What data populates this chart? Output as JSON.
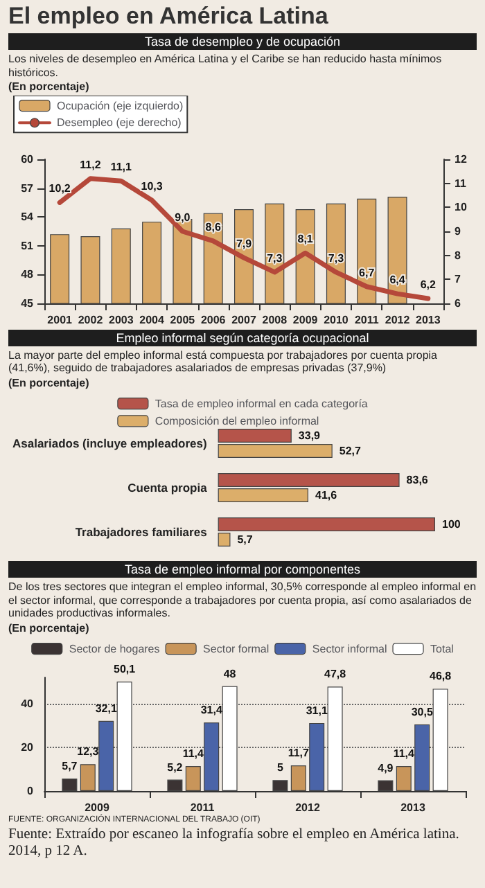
{
  "chart_data": [
    {
      "type": "bar",
      "title": "El empleo en América Latina",
      "subtitle": "Tasa de desempleo y de ocupación",
      "annotations": [
        "Los niveles de desempleo en América Latina y el Caribe se han reducido hasta mínimos históricos.",
        "(En porcentaje)"
      ],
      "categories": [
        "2001",
        "2002",
        "2003",
        "2004",
        "2005",
        "2006",
        "2007",
        "2008",
        "2009",
        "2010",
        "2011",
        "2012",
        "2013"
      ],
      "series": [
        {
          "name": "Ocupación (eje izquierdo)",
          "color": "#d9a866",
          "values": [
            52.2,
            52.0,
            52.8,
            53.5,
            53.8,
            54.4,
            54.8,
            55.4,
            54.8,
            55.4,
            55.9,
            56.1,
            null
          ]
        },
        {
          "name": "Desempleo (eje derecho)",
          "type": "line",
          "axis": "y2",
          "color": "#b5483a",
          "values": [
            10.2,
            11.2,
            11.1,
            10.3,
            9.0,
            8.6,
            7.9,
            7.3,
            8.1,
            7.3,
            6.7,
            6.4,
            6.2
          ],
          "value_labels": [
            "10,2",
            "11,2",
            "11,1",
            "10,3",
            "9,0",
            "8,6",
            "7,9",
            "7,3",
            "8,1",
            "7,3",
            "6,7",
            "6,4",
            "6,2"
          ]
        }
      ],
      "ylim": [
        45,
        60
      ],
      "yticks": [
        45,
        48,
        51,
        54,
        57,
        60
      ],
      "y2lim": [
        6,
        12
      ],
      "y2ticks": [
        6,
        7,
        8,
        9,
        10,
        11,
        12
      ],
      "legend": "top left",
      "marker": "none"
    },
    {
      "type": "bar",
      "orientation": "horizontal",
      "title": "Empleo informal según categoría ocupacional",
      "annotations": [
        "La mayor parte del empleo informal está compuesta por trabajadores por cuenta propia (41,6%), seguido de trabajadores asalariados de empresas privadas (37,9%)",
        "(En porcentaje)"
      ],
      "categories": [
        "Asalariados (incluye empleadores)",
        "Cuenta propia",
        "Trabajadores familiares"
      ],
      "series": [
        {
          "name": "Tasa de empleo informal en cada categoría",
          "color": "#b5544a",
          "values": [
            33.9,
            83.6,
            100
          ],
          "value_labels": [
            "33,9",
            "83,6",
            "100"
          ]
        },
        {
          "name": "Composición del empleo informal",
          "color": "#dcae6a",
          "values": [
            52.7,
            41.6,
            5.7
          ],
          "value_labels": [
            "52,7",
            "41,6",
            "5,7"
          ]
        }
      ],
      "legend": "top"
    },
    {
      "type": "bar",
      "title": "Tasa de empleo informal por componentes",
      "annotations": [
        "De los tres sectores que integran el empleo informal, 30,5% corresponde al empleo informal en el sector informal, que corresponde a trabajadores por cuenta propia, así como asalariados de unidades productivas informales.",
        "(En porcentaje)",
        "FUENTE: ORGANIZACIÓN INTERNACIONAL DEL TRABAJO (OIT)",
        "Fuente: Extraído por escaneo la infografía sobre el empleo en América latina. 2014, p 12 A."
      ],
      "categories": [
        "2009",
        "2011",
        "2012",
        "2013"
      ],
      "series": [
        {
          "name": "Sector de hogares",
          "color": "#3b3333",
          "values": [
            5.7,
            5.2,
            5,
            4.9
          ],
          "value_labels": [
            "5,7",
            "5,2",
            "5",
            "4,9"
          ]
        },
        {
          "name": "Sector formal",
          "color": "#c8955a",
          "values": [
            12.3,
            11.4,
            11.7,
            11.4
          ],
          "value_labels": [
            "12,3",
            "11,4",
            "11,7",
            "11,4"
          ]
        },
        {
          "name": "Sector informal",
          "color": "#4a64a8",
          "values": [
            32.1,
            31.4,
            31.1,
            30.5
          ],
          "value_labels": [
            "32,1",
            "31,4",
            "31,1",
            "30,5"
          ]
        },
        {
          "name": "Total",
          "color": "#ffffff",
          "values": [
            50.1,
            48,
            47.8,
            46.8
          ],
          "value_labels": [
            "50,1",
            "48",
            "47,8",
            "46,8"
          ]
        }
      ],
      "ylim": [
        0,
        52
      ],
      "yticks": [
        0,
        20,
        40
      ],
      "grid": "y",
      "legend": "top"
    }
  ]
}
